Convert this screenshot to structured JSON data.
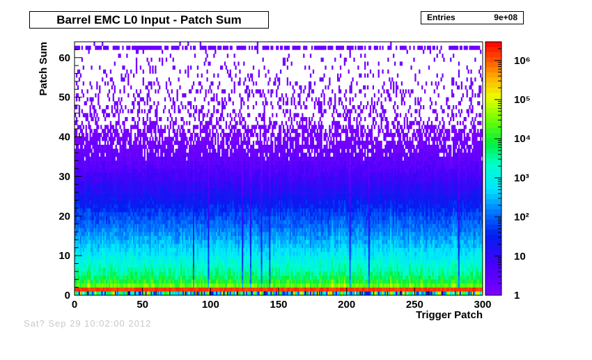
{
  "chart_data": {
    "type": "heatmap",
    "title": "Barrel EMC L0 Input - Patch Sum",
    "xlabel": "Trigger Patch",
    "ylabel": "Patch Sum",
    "xlim": [
      0,
      300
    ],
    "ylim": [
      0,
      64
    ],
    "x_ticks": [
      0,
      50,
      100,
      150,
      200,
      250,
      300
    ],
    "y_ticks": [
      0,
      10,
      20,
      30,
      40,
      50,
      60
    ],
    "z_scale": "log",
    "z_range": [
      1,
      3000000
    ],
    "z_tick_labels": [
      "1",
      "10",
      "10²",
      "10³",
      "10⁴",
      "10⁵",
      "10⁶"
    ],
    "z_ticks": [
      1,
      10,
      100,
      1000,
      10000,
      100000,
      1000000
    ],
    "x_bins": 300,
    "y_bins": 64,
    "profile_note": "counts peak in rows 1-2 (~1e6), fall roughly exponentially with Patch Sum to ~1 near 40-60; row 62 is a saturation band",
    "row_profile_log10": [
      3.6,
      6.3,
      4.4,
      4.0,
      3.75,
      3.55,
      3.4,
      3.25,
      3.1,
      2.95,
      2.8,
      2.7,
      2.55,
      2.45,
      2.35,
      2.25,
      2.15,
      2.05,
      1.95,
      1.85,
      1.75,
      1.65,
      1.55,
      1.45,
      1.35,
      1.25,
      1.15,
      1.05,
      0.95,
      0.85,
      0.75,
      0.65,
      0.55,
      0.48,
      0.4,
      0.34,
      0.28,
      0.22,
      0.17,
      0.12,
      0.08,
      0.05,
      0.03,
      0.01,
      0,
      0,
      0,
      0,
      0,
      0,
      0,
      0,
      0,
      0,
      0,
      0,
      0,
      0,
      0,
      0,
      0,
      0,
      0.3,
      0
    ],
    "stats": {
      "label": "Entries",
      "value": "9e+08"
    },
    "colors": {
      "background": "#ffffff",
      "frame": "#000000"
    }
  },
  "footer": {
    "timestamp": "Sat? Sep 29 10:02:00 2012"
  }
}
